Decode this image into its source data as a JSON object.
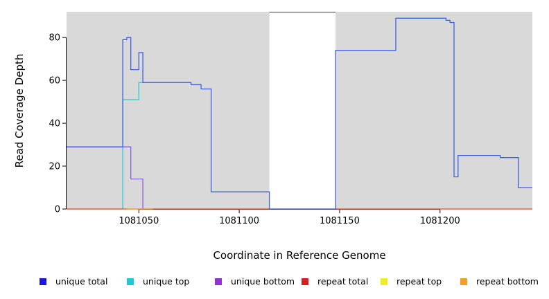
{
  "chart_data": {
    "type": "line",
    "title": "",
    "xlabel": "Coordinate in Reference Genome",
    "ylabel": "Read Coverage Depth",
    "xlim": [
      1081014,
      1081246
    ],
    "ylim": [
      0,
      92
    ],
    "xticks": [
      1081050,
      1081100,
      1081150,
      1081200
    ],
    "yticks": [
      0,
      20,
      40,
      60,
      80
    ],
    "grid": false,
    "background_bands": [
      {
        "x0": 1081014,
        "x1": 1081115,
        "color": "#d9d9d9"
      },
      {
        "x0": 1081148,
        "x1": 1081246,
        "color": "#d9d9d9"
      }
    ],
    "gap_region": {
      "x0": 1081115,
      "x1": 1081148,
      "border_color": "#3a3a3a"
    },
    "series": [
      {
        "name": "unique top",
        "color": "#2fc9d4",
        "points": [
          [
            1081014,
            0
          ],
          [
            1081042,
            0
          ],
          [
            1081042,
            51
          ],
          [
            1081050,
            51
          ],
          [
            1081050,
            59
          ],
          [
            1081052,
            59
          ]
        ]
      },
      {
        "name": "unique bottom",
        "color": "#8f5fd8",
        "points": [
          [
            1081014,
            29
          ],
          [
            1081046,
            29
          ],
          [
            1081046,
            14
          ],
          [
            1081052,
            14
          ],
          [
            1081052,
            0
          ]
        ]
      },
      {
        "name": "repeat top",
        "color": "#f0ee30",
        "points": [
          [
            1081014,
            0
          ],
          [
            1081246,
            0
          ]
        ]
      },
      {
        "name": "repeat total",
        "color": "#e04545",
        "points": [
          [
            1081014,
            0
          ],
          [
            1081246,
            0
          ]
        ]
      },
      {
        "name": "repeat bottom",
        "color": "#f0a030",
        "points": [
          [
            1081044,
            0
          ],
          [
            1081057,
            0
          ]
        ]
      },
      {
        "name": "unique total",
        "color": "#3d5fe0",
        "points": [
          [
            1081014,
            29
          ],
          [
            1081042,
            29
          ],
          [
            1081042,
            79
          ],
          [
            1081044,
            79
          ],
          [
            1081044,
            80
          ],
          [
            1081046,
            80
          ],
          [
            1081046,
            65
          ],
          [
            1081050,
            65
          ],
          [
            1081050,
            73
          ],
          [
            1081052,
            73
          ],
          [
            1081052,
            59
          ],
          [
            1081076,
            59
          ],
          [
            1081076,
            58
          ],
          [
            1081081,
            58
          ],
          [
            1081081,
            56
          ],
          [
            1081086,
            56
          ],
          [
            1081086,
            8
          ],
          [
            1081115,
            8
          ],
          [
            1081115,
            0
          ],
          [
            1081148,
            0
          ],
          [
            1081148,
            74
          ],
          [
            1081178,
            74
          ],
          [
            1081178,
            89
          ],
          [
            1081203,
            89
          ],
          [
            1081203,
            88
          ],
          [
            1081205,
            88
          ],
          [
            1081205,
            87
          ],
          [
            1081207,
            87
          ],
          [
            1081207,
            15
          ],
          [
            1081209,
            15
          ],
          [
            1081209,
            25
          ],
          [
            1081230,
            25
          ],
          [
            1081230,
            24
          ],
          [
            1081239,
            24
          ],
          [
            1081239,
            10
          ],
          [
            1081246,
            10
          ]
        ]
      }
    ],
    "legend": {
      "position": "bottom",
      "items": [
        {
          "label": "unique total",
          "color": "#1a1ad6"
        },
        {
          "label": "unique top",
          "color": "#20c8d6"
        },
        {
          "label": "unique bottom",
          "color": "#9232d2"
        },
        {
          "label": "repeat total",
          "color": "#d42020"
        },
        {
          "label": "repeat top",
          "color": "#f2ee20"
        },
        {
          "label": "repeat bottom",
          "color": "#f2a020"
        }
      ]
    }
  }
}
